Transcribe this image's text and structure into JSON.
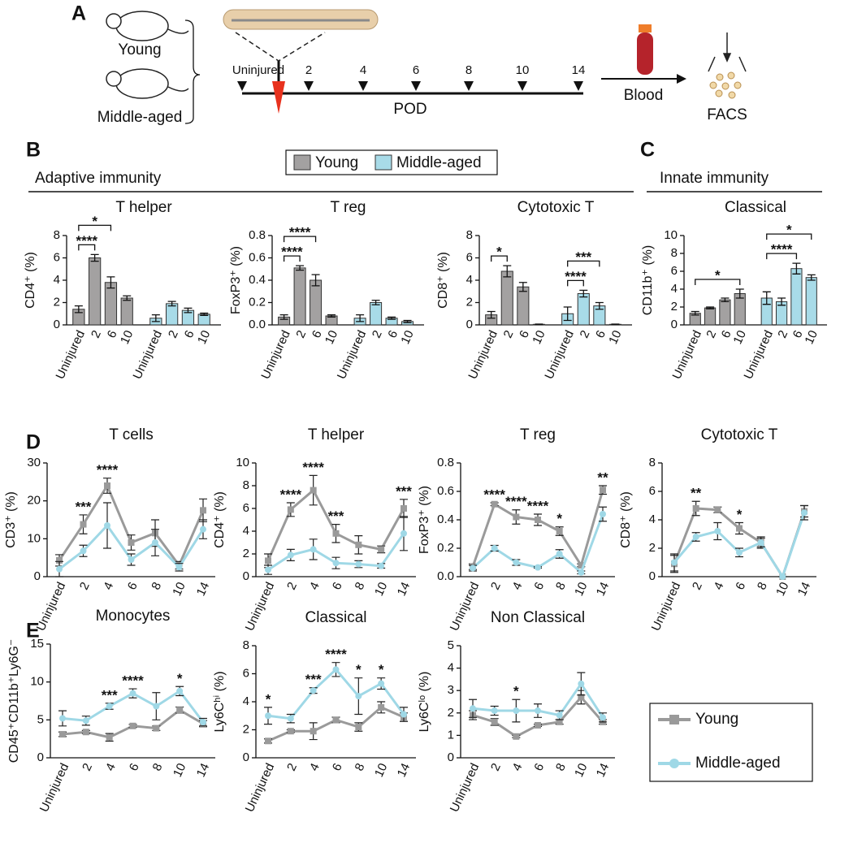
{
  "panel_labels": [
    "A",
    "B",
    "C",
    "D",
    "E"
  ],
  "sections": [
    "Adaptive immunity",
    "Innate immunity"
  ],
  "schematic": {
    "groups": [
      "Young",
      "Middle-aged"
    ],
    "timeline": [
      "Uninjured",
      "2",
      "4",
      "6",
      "8",
      "10",
      "14"
    ],
    "axis_label": "POD",
    "blood": "Blood",
    "facs": "FACS"
  },
  "chart_data": [
    {
      "type": "bar",
      "title": "T helper",
      "ylabel": "CD4⁺ (%)",
      "categories": [
        "Uninjured",
        "2",
        "6",
        "10"
      ],
      "series": [
        {
          "name": "Young",
          "color": "#a3a1a1",
          "values": [
            1.4,
            6.0,
            3.8,
            2.4
          ],
          "errors": [
            0.3,
            0.3,
            0.5,
            0.2
          ]
        },
        {
          "name": "Middle-aged",
          "color": "#a8dbe8",
          "values": [
            0.6,
            1.9,
            1.3,
            0.95
          ],
          "errors": [
            0.3,
            0.2,
            0.2,
            0.1
          ]
        }
      ],
      "ylim": [
        0,
        8
      ],
      "yticks": [
        0,
        2,
        4,
        6,
        8
      ],
      "annotations": [
        "*",
        "****"
      ]
    },
    {
      "type": "bar",
      "title": "T reg",
      "ylabel": "FoxP3⁺ (%)",
      "categories": [
        "Uninjured",
        "2",
        "6",
        "10"
      ],
      "series": [
        {
          "name": "Young",
          "color": "#a3a1a1",
          "values": [
            0.07,
            0.51,
            0.4,
            0.08
          ],
          "errors": [
            0.02,
            0.02,
            0.05,
            0.01
          ]
        },
        {
          "name": "Middle-aged",
          "color": "#a8dbe8",
          "values": [
            0.06,
            0.2,
            0.06,
            0.03
          ],
          "errors": [
            0.03,
            0.02,
            0.01,
            0.01
          ]
        }
      ],
      "ylim": [
        0,
        0.8
      ],
      "yticks": [
        {
          "value": 0,
          "label": "0.0"
        },
        0.2,
        0.4,
        0.6,
        0.8
      ],
      "annotations": [
        "****",
        "****"
      ]
    },
    {
      "type": "bar",
      "title": "Cytotoxic T",
      "ylabel": "CD8⁺ (%)",
      "categories": [
        "Uninjured",
        "2",
        "6",
        "10"
      ],
      "series": [
        {
          "name": "Young",
          "color": "#a3a1a1",
          "values": [
            0.9,
            4.8,
            3.4,
            0.05
          ],
          "errors": [
            0.3,
            0.5,
            0.4,
            0.02
          ]
        },
        {
          "name": "Middle-aged",
          "color": "#a8dbe8",
          "values": [
            1.0,
            2.8,
            1.7,
            0.05
          ],
          "errors": [
            0.6,
            0.3,
            0.3,
            0.02
          ]
        }
      ],
      "ylim": [
        0,
        8
      ],
      "yticks": [
        0,
        2,
        4,
        6,
        8
      ],
      "annotations": [
        "*",
        "***",
        "****"
      ]
    },
    {
      "type": "bar",
      "title": "Classical",
      "ylabel": "CD11b⁺ (%)",
      "categories": [
        "Uninjured",
        "2",
        "6",
        "10"
      ],
      "series": [
        {
          "name": "Young",
          "color": "#a3a1a1",
          "values": [
            1.3,
            1.9,
            2.8,
            3.5
          ],
          "errors": [
            0.2,
            0.1,
            0.2,
            0.5
          ]
        },
        {
          "name": "Middle-aged",
          "color": "#a8dbe8",
          "values": [
            3.0,
            2.6,
            6.3,
            5.3
          ],
          "errors": [
            0.7,
            0.4,
            0.6,
            0.3
          ]
        }
      ],
      "ylim": [
        0,
        10
      ],
      "yticks": [
        0,
        2,
        4,
        6,
        8,
        10
      ],
      "annotations": [
        "*",
        "****",
        "*"
      ]
    },
    {
      "type": "line",
      "title": "T cells",
      "ylabel": "CD3⁺ (%)",
      "categories": [
        "Uninjured",
        "2",
        "4",
        "6",
        "8",
        "10",
        "14"
      ],
      "series": [
        {
          "name": "Young",
          "color": "#9a9a9a",
          "values": [
            4.3,
            13.8,
            24,
            9,
            11.5,
            3,
            17.5
          ],
          "errors": [
            1.5,
            2.5,
            2,
            2,
            3.5,
            1,
            3
          ]
        },
        {
          "name": "Middle-aged",
          "color": "#9fd8e6",
          "values": [
            2,
            6.8,
            13.5,
            4.5,
            9,
            2.5,
            12.5
          ],
          "errors": [
            2,
            1.5,
            6,
            1.5,
            3.5,
            1,
            2.5
          ]
        }
      ],
      "ylim": [
        0,
        30
      ],
      "yticks": [
        0,
        10,
        20,
        30
      ],
      "annotations": [
        "***",
        "****"
      ]
    },
    {
      "type": "line",
      "title": "T helper",
      "ylabel": "CD4⁺ (%)",
      "categories": [
        "Uninjured",
        "2",
        "4",
        "6",
        "8",
        "10",
        "14"
      ],
      "series": [
        {
          "name": "Young",
          "color": "#9a9a9a",
          "values": [
            1.4,
            5.9,
            7.6,
            3.8,
            2.8,
            2.4,
            6.0
          ],
          "errors": [
            0.6,
            0.6,
            1.3,
            0.8,
            0.8,
            0.3,
            0.8
          ]
        },
        {
          "name": "Middle-aged",
          "color": "#9fd8e6",
          "values": [
            0.6,
            1.9,
            2.4,
            1.2,
            1.1,
            0.95,
            3.8
          ],
          "errors": [
            0.4,
            0.5,
            0.9,
            0.5,
            0.3,
            0.2,
            1.5
          ]
        }
      ],
      "ylim": [
        0,
        10
      ],
      "yticks": [
        0,
        2,
        4,
        6,
        8,
        10
      ],
      "annotations": [
        "****",
        "****",
        "***",
        "***"
      ]
    },
    {
      "type": "line",
      "title": "T reg",
      "ylabel": "FoxP3⁺ (%)",
      "categories": [
        "Uninjured",
        "2",
        "4",
        "6",
        "8",
        "10",
        "14"
      ],
      "series": [
        {
          "name": "Young",
          "color": "#9a9a9a",
          "values": [
            0.07,
            0.51,
            0.42,
            0.4,
            0.32,
            0.08,
            0.61
          ],
          "errors": [
            0.02,
            0.01,
            0.05,
            0.04,
            0.03,
            0.01,
            0.03
          ]
        },
        {
          "name": "Middle-aged",
          "color": "#9fd8e6",
          "values": [
            0.06,
            0.2,
            0.1,
            0.065,
            0.16,
            0.03,
            0.44
          ],
          "errors": [
            0.02,
            0.02,
            0.02,
            0.005,
            0.03,
            0.01,
            0.05
          ]
        }
      ],
      "ylim": [
        0,
        0.8
      ],
      "yticks": [
        {
          "value": 0,
          "label": "0.0"
        },
        0.2,
        0.4,
        0.6,
        0.8
      ],
      "annotations": [
        "****",
        "****",
        "****",
        "*",
        "**"
      ]
    },
    {
      "type": "line",
      "title": "Cytotoxic T",
      "ylabel": "CD8⁺ (%)",
      "categories": [
        "Uninjured",
        "2",
        "4",
        "6",
        "8",
        "10",
        "14"
      ],
      "series": [
        {
          "name": "Young",
          "color": "#9a9a9a",
          "values": [
            0.9,
            4.8,
            4.7,
            3.4,
            2.4,
            0,
            4.6
          ],
          "errors": [
            0.6,
            0.5,
            0.2,
            0.4,
            0.4,
            0,
            0.4
          ]
        },
        {
          "name": "Middle-aged",
          "color": "#9fd8e6",
          "values": [
            1.0,
            2.8,
            3.2,
            1.7,
            2.4,
            0,
            4.5
          ],
          "errors": [
            0.6,
            0.3,
            0.6,
            0.3,
            0.3,
            0,
            0.5
          ]
        }
      ],
      "ylim": [
        0,
        8
      ],
      "yticks": [
        0,
        2,
        4,
        6,
        8
      ],
      "annotations": [
        "**",
        "*"
      ]
    },
    {
      "type": "line",
      "title": "Monocytes",
      "ylabel": "CD45⁺CD11b⁺Ly6G⁻",
      "categories": [
        "Uninjured",
        "2",
        "4",
        "6",
        "8",
        "10",
        "14"
      ],
      "series": [
        {
          "name": "Young",
          "color": "#9a9a9a",
          "values": [
            3.1,
            3.4,
            2.7,
            4.2,
            3.9,
            6.3,
            4.5
          ],
          "errors": [
            0.3,
            0.2,
            0.5,
            0.2,
            0.3,
            0.4,
            0.4
          ]
        },
        {
          "name": "Middle-aged",
          "color": "#9fd8e6",
          "values": [
            5.2,
            4.9,
            6.8,
            8.5,
            6.8,
            8.8,
            4.7
          ],
          "errors": [
            1,
            0.6,
            0.4,
            0.6,
            1.8,
            0.6,
            0.5
          ]
        }
      ],
      "ylim": [
        0,
        15
      ],
      "yticks": [
        0,
        5,
        10,
        15
      ],
      "annotations": [
        "***",
        "****",
        "*"
      ]
    },
    {
      "type": "line",
      "title": "Classical",
      "ylabel": "Ly6Cʰⁱ (%)",
      "categories": [
        "Uninjured",
        "2",
        "4",
        "6",
        "8",
        "10",
        "14"
      ],
      "series": [
        {
          "name": "Young",
          "color": "#9a9a9a",
          "values": [
            1.2,
            1.9,
            1.9,
            2.7,
            2.2,
            3.6,
            2.9
          ],
          "errors": [
            0.15,
            0.1,
            0.6,
            0.2,
            0.3,
            0.4,
            0.3
          ]
        },
        {
          "name": "Middle-aged",
          "color": "#9fd8e6",
          "values": [
            3.0,
            2.8,
            4.8,
            6.3,
            4.4,
            5.3,
            3.1
          ],
          "errors": [
            0.6,
            0.3,
            0.2,
            0.5,
            1.3,
            0.4,
            0.5
          ]
        }
      ],
      "ylim": [
        0,
        8
      ],
      "yticks": [
        0,
        2,
        4,
        6,
        8
      ],
      "annotations": [
        "*",
        "***",
        "****",
        "*",
        "*"
      ]
    },
    {
      "type": "line",
      "title": "Non Classical",
      "ylabel": "Ly6Cˡᵒ (%)",
      "categories": [
        "Uninjured",
        "2",
        "4",
        "6",
        "8",
        "10",
        "14"
      ],
      "series": [
        {
          "name": "Young",
          "color": "#9a9a9a",
          "values": [
            1.9,
            1.6,
            0.95,
            1.45,
            1.6,
            2.7,
            1.6
          ],
          "errors": [
            0.2,
            0.15,
            0.05,
            0.05,
            0.1,
            0.3,
            0.1
          ]
        },
        {
          "name": "Middle-aged",
          "color": "#9fd8e6",
          "values": [
            2.2,
            2.1,
            2.1,
            2.1,
            1.9,
            3.3,
            1.8
          ],
          "errors": [
            0.4,
            0.2,
            0.5,
            0.3,
            0.2,
            0.5,
            0.2
          ]
        }
      ],
      "ylim": [
        0,
        5
      ],
      "yticks": [
        0,
        1,
        2,
        3,
        4,
        5
      ],
      "annotations": [
        "*"
      ]
    }
  ]
}
